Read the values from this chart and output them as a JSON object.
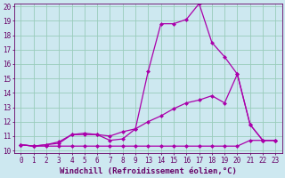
{
  "title": "",
  "xlabel": "Windchill (Refroidissement éolien,°C)",
  "bg_color": "#cde8f0",
  "grid_color": "#99ccbb",
  "line_color": "#aa00aa",
  "ylim": [
    10,
    20
  ],
  "yticks": [
    10,
    11,
    12,
    13,
    14,
    15,
    16,
    17,
    18,
    19,
    20
  ],
  "xtick_labels": [
    "0",
    "1",
    "2",
    "3",
    "4",
    "5",
    "6",
    "7",
    "8",
    "9",
    "13",
    "14",
    "15",
    "16",
    "17",
    "18",
    "19",
    "20",
    "21",
    "22",
    "23"
  ],
  "line1_y": [
    10.4,
    10.3,
    10.3,
    10.3,
    10.3,
    10.3,
    10.3,
    10.3,
    10.3,
    10.3,
    10.3,
    10.3,
    10.3,
    10.3,
    10.3,
    10.3,
    10.3,
    10.3,
    10.7,
    10.7,
    10.7
  ],
  "line2_y": [
    10.4,
    10.3,
    10.4,
    10.5,
    11.1,
    11.1,
    11.1,
    11.0,
    11.3,
    11.5,
    12.0,
    12.4,
    12.9,
    13.3,
    13.5,
    13.8,
    13.3,
    15.3,
    11.8,
    10.7,
    10.7
  ],
  "line3_y": [
    10.4,
    10.3,
    10.4,
    10.6,
    11.1,
    11.2,
    11.1,
    10.7,
    10.8,
    11.5,
    15.5,
    18.8,
    18.8,
    19.1,
    20.2,
    17.5,
    16.5,
    15.3,
    11.8,
    10.7,
    10.7
  ],
  "markersize": 2.5,
  "linewidth": 0.9,
  "font_color": "#660066",
  "tick_fontsize": 5.5,
  "xlabel_fontsize": 6.5
}
